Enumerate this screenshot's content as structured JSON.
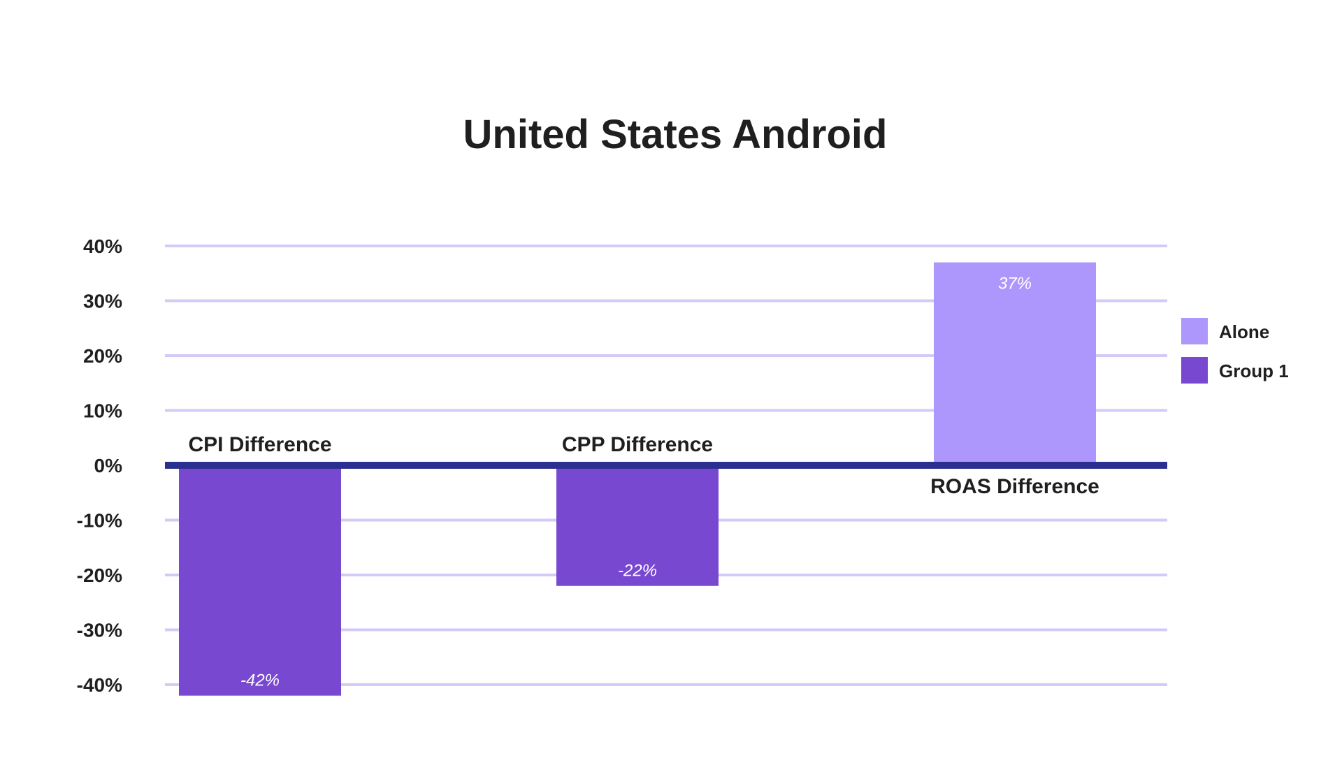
{
  "chart_data": {
    "type": "bar",
    "title": "United States Android",
    "categories": [
      "CPI Difference",
      "CPP Difference",
      "ROAS Difference"
    ],
    "series": [
      {
        "name": "Alone",
        "color": "#ae97fc",
        "values": [
          null,
          null,
          37
        ]
      },
      {
        "name": "Group 1",
        "color": "#7848d0",
        "values": [
          -42,
          -22,
          null
        ]
      }
    ],
    "value_labels": [
      "-42%",
      "-22%",
      "37%"
    ],
    "yticks": [
      40,
      30,
      20,
      10,
      0,
      -10,
      -20,
      -30,
      -40
    ],
    "ytick_labels": [
      "40%",
      "30%",
      "20%",
      "10%",
      "0%",
      "-10%",
      "-20%",
      "-30%",
      "-40%"
    ],
    "ylim": [
      -45,
      40
    ],
    "xlabel": "",
    "ylabel": "",
    "grid": true,
    "grid_color": "#d5caf7",
    "zero_line_color": "#2b2f8f",
    "legend_position": "right"
  }
}
